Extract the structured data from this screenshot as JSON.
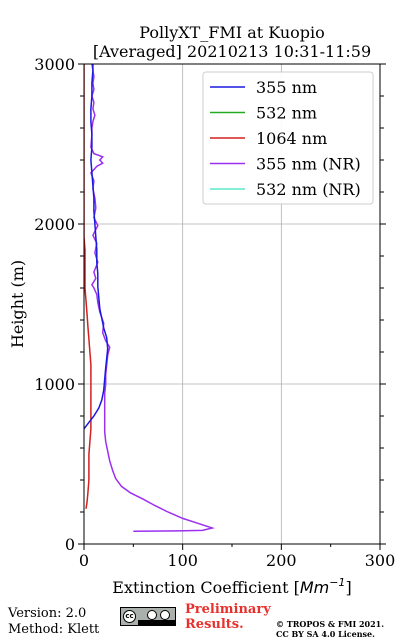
{
  "chart_data": {
    "type": "line",
    "title_line1": "PollyXT_FMI at Kuopio",
    "title_line2": "[Averaged] 20210213 10:31-11:59",
    "xlabel_prefix": "Extinction Coefficient [",
    "xlabel_unit_main": "Mm",
    "xlabel_unit_exp": "−1",
    "xlabel_suffix": "]",
    "ylabel": "Height (m)",
    "xlim": [
      0,
      300
    ],
    "ylim": [
      0,
      3000
    ],
    "x_ticks": [
      0,
      100,
      200,
      300
    ],
    "x_tick_labels": [
      "0",
      "100",
      "200",
      "300"
    ],
    "y_ticks": [
      0,
      1000,
      2000,
      3000
    ],
    "y_tick_labels": [
      "0",
      "1000",
      "2000",
      "3000"
    ],
    "grid": true,
    "legend_position": "top-right",
    "series": [
      {
        "name": "355 nm",
        "color": "#1a1adf",
        "points": [
          [
            0,
            720
          ],
          [
            5,
            760
          ],
          [
            10,
            800
          ],
          [
            15,
            850
          ],
          [
            18,
            900
          ],
          [
            20,
            960
          ],
          [
            21,
            1030
          ],
          [
            22,
            1100
          ],
          [
            23,
            1160
          ],
          [
            24,
            1220
          ],
          [
            23,
            1290
          ],
          [
            20,
            1350
          ],
          [
            18,
            1410
          ],
          [
            16,
            1470
          ],
          [
            15,
            1540
          ],
          [
            14,
            1610
          ],
          [
            14,
            1690
          ],
          [
            13,
            1760
          ],
          [
            13,
            1840
          ],
          [
            12,
            1920
          ],
          [
            11,
            2000
          ],
          [
            10,
            2080
          ],
          [
            10,
            2160
          ],
          [
            9,
            2240
          ],
          [
            8,
            2320
          ],
          [
            7,
            2400
          ],
          [
            8,
            2480
          ],
          [
            8,
            2560
          ],
          [
            7,
            2640
          ],
          [
            7,
            2720
          ],
          [
            8,
            2800
          ],
          [
            8,
            2880
          ],
          [
            9,
            2960
          ],
          [
            9,
            3000
          ]
        ]
      },
      {
        "name": "532 nm",
        "color": "#22aa22",
        "points": []
      },
      {
        "name": "1064 nm",
        "color": "#d42020",
        "points": [
          [
            2,
            220
          ],
          [
            3,
            260
          ],
          [
            4,
            320
          ],
          [
            5,
            400
          ],
          [
            5,
            480
          ],
          [
            5,
            560
          ],
          [
            6,
            640
          ],
          [
            7,
            720
          ],
          [
            7,
            800
          ],
          [
            7,
            880
          ],
          [
            7,
            960
          ],
          [
            7,
            1040
          ],
          [
            7,
            1120
          ],
          [
            6,
            1200
          ],
          [
            5,
            1280
          ],
          [
            4,
            1360
          ],
          [
            3,
            1440
          ],
          [
            2,
            1520
          ],
          [
            1,
            1600
          ],
          [
            1,
            1680
          ],
          [
            1,
            1760
          ],
          [
            1,
            1840
          ],
          [
            0,
            1920
          ],
          [
            0,
            2000
          ],
          [
            0,
            2200
          ],
          [
            0,
            2400
          ],
          [
            0,
            2600
          ],
          [
            0,
            2800
          ],
          [
            0,
            3000
          ]
        ]
      },
      {
        "name": "355 nm (NR)",
        "color": "#9b30f0",
        "points": [
          [
            50,
            80
          ],
          [
            95,
            82
          ],
          [
            120,
            85
          ],
          [
            130,
            100
          ],
          [
            115,
            130
          ],
          [
            100,
            160
          ],
          [
            85,
            200
          ],
          [
            72,
            240
          ],
          [
            60,
            280
          ],
          [
            47,
            320
          ],
          [
            38,
            360
          ],
          [
            32,
            410
          ],
          [
            29,
            460
          ],
          [
            26,
            520
          ],
          [
            24,
            580
          ],
          [
            22,
            640
          ],
          [
            21,
            700
          ],
          [
            21,
            760
          ],
          [
            21,
            820
          ],
          [
            21,
            880
          ],
          [
            21,
            940
          ],
          [
            22,
            1000
          ],
          [
            22,
            1060
          ],
          [
            23,
            1120
          ],
          [
            24,
            1180
          ],
          [
            26,
            1230
          ],
          [
            22,
            1270
          ],
          [
            19,
            1320
          ],
          [
            20,
            1380
          ],
          [
            16,
            1450
          ],
          [
            14,
            1510
          ],
          [
            13,
            1560
          ],
          [
            10,
            1600
          ],
          [
            8,
            1620
          ],
          [
            12,
            1660
          ],
          [
            10,
            1700
          ],
          [
            14,
            1760
          ],
          [
            11,
            1820
          ],
          [
            13,
            1880
          ],
          [
            9,
            1930
          ],
          [
            14,
            1990
          ],
          [
            10,
            2040
          ],
          [
            12,
            2100
          ],
          [
            11,
            2160
          ],
          [
            9,
            2220
          ],
          [
            10,
            2270
          ],
          [
            7,
            2320
          ],
          [
            10,
            2340
          ],
          [
            13,
            2360
          ],
          [
            19,
            2380
          ],
          [
            16,
            2400
          ],
          [
            19,
            2420
          ],
          [
            10,
            2440
          ],
          [
            7,
            2480
          ],
          [
            8,
            2560
          ],
          [
            8,
            2600
          ],
          [
            9,
            2640
          ],
          [
            11,
            2680
          ],
          [
            9,
            2720
          ],
          [
            10,
            2760
          ],
          [
            8,
            2800
          ],
          [
            10,
            2840
          ],
          [
            9,
            2880
          ],
          [
            10,
            2920
          ],
          [
            9,
            2960
          ],
          [
            8,
            3000
          ]
        ]
      },
      {
        "name": "532 nm (NR)",
        "color": "#5fe8c8",
        "points": []
      }
    ]
  },
  "footer": {
    "version": "Version: 2.0",
    "method": "Method: Klett",
    "logo_cc": "cc",
    "logo_by": "BY",
    "logo_sa": "SA",
    "preliminary_line1": "Preliminary",
    "preliminary_line2": "Results.",
    "copyright_line1": "© TROPOS & FMI 2021.",
    "copyright_line2": "CC BY SA 4.0 License."
  }
}
